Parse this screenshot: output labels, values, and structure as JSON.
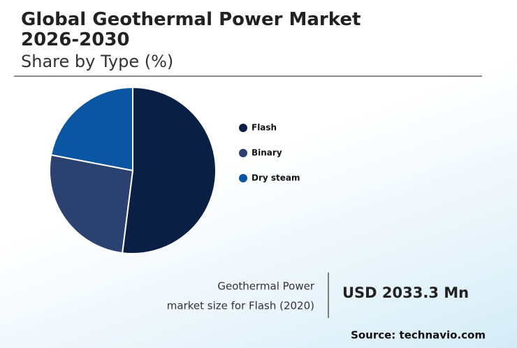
{
  "chart_data": {
    "type": "pie",
    "title": "Global Geothermal Power Market 2026-2030",
    "subtitle": "Share by Type (%)",
    "categories": [
      "Flash",
      "Binary",
      "Dry steam"
    ],
    "values": [
      52,
      26,
      22
    ],
    "colors": [
      "#0a1f44",
      "#2b4170",
      "#0a56a3"
    ]
  },
  "summary": {
    "label_lines": [
      "Geothermal Power",
      "market size for Flash (2020)"
    ],
    "value": "USD 2033.3 Mn"
  },
  "source": "Source: technavio.com"
}
